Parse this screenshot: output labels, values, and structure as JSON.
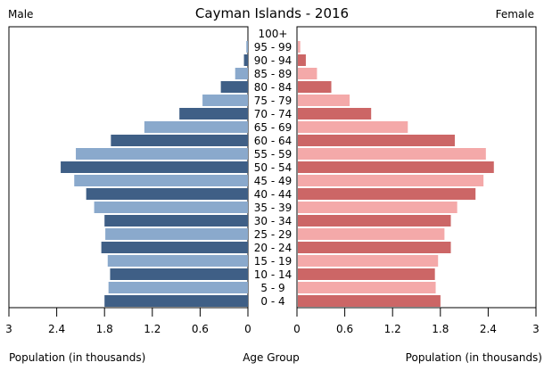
{
  "chart_data": {
    "type": "bar",
    "subtype": "population-pyramid",
    "title": "Cayman Islands - 2016",
    "left_label": "Male",
    "right_label": "Female",
    "left_xlabel": "Population (in thousands)",
    "center_label": "Age Group",
    "right_xlabel": "Population (in thousands)",
    "xlim": [
      0,
      3
    ],
    "ticks": [
      0,
      0.6,
      1.2,
      1.8,
      2.4,
      3
    ],
    "tick_labels": [
      "0",
      "0.6",
      "1.2",
      "1.8",
      "2.4",
      "3"
    ],
    "categories": [
      "100+",
      "95 - 99",
      "90 - 94",
      "85 - 89",
      "80 - 84",
      "75 - 79",
      "70 - 74",
      "65 - 69",
      "60 - 64",
      "55 - 59",
      "50 - 54",
      "45 - 49",
      "40 - 44",
      "35 - 39",
      "30 - 34",
      "25 - 29",
      "20 - 24",
      "15 - 19",
      "10 - 14",
      "5 - 9",
      "0 - 4"
    ],
    "series": [
      {
        "name": "Male",
        "values": [
          0.0,
          0.02,
          0.05,
          0.16,
          0.34,
          0.57,
          0.86,
          1.3,
          1.72,
          2.16,
          2.35,
          2.18,
          2.03,
          1.93,
          1.8,
          1.79,
          1.84,
          1.76,
          1.73,
          1.75,
          1.8
        ],
        "colors": [
          "#3f5f86",
          "#8aa9cc"
        ]
      },
      {
        "name": "Female",
        "values": [
          0.0,
          0.03,
          0.1,
          0.24,
          0.42,
          0.65,
          0.92,
          1.38,
          1.97,
          2.36,
          2.46,
          2.33,
          2.23,
          2.0,
          1.92,
          1.84,
          1.92,
          1.76,
          1.72,
          1.73,
          1.79
        ],
        "colors": [
          "#cc6666",
          "#f4a9a9"
        ]
      }
    ]
  }
}
